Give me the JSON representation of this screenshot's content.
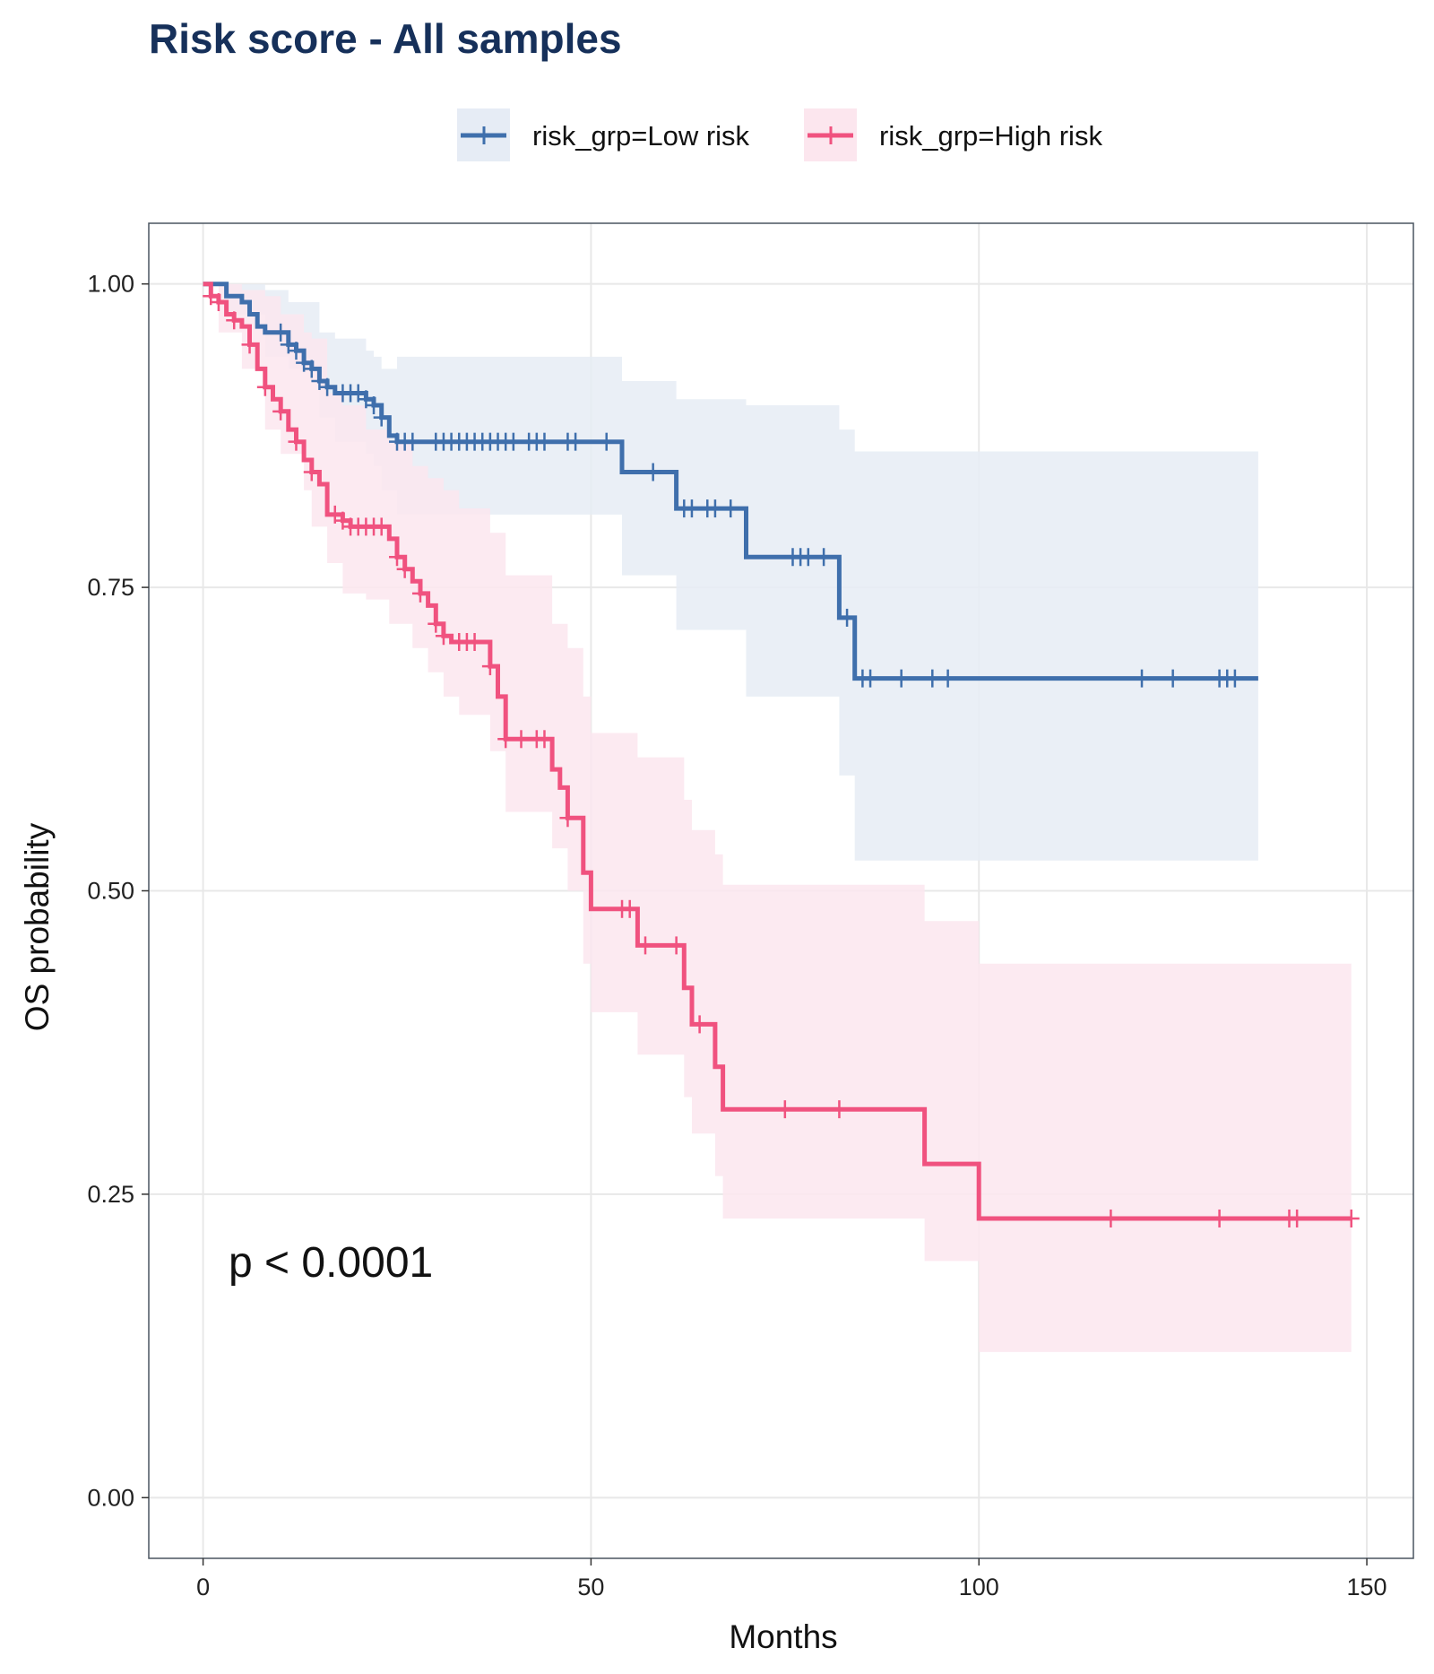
{
  "chart_data": {
    "type": "line",
    "subtype": "kaplan-meier survival curve with 95% confidence bands and censor marks",
    "title": "Risk score - All samples",
    "xlabel": "Months",
    "ylabel": "OS probability",
    "xlim": [
      -7,
      156
    ],
    "ylim": [
      -0.05,
      1.05
    ],
    "xticks": [
      0,
      50,
      100,
      150
    ],
    "xtick_labels": [
      "0",
      "50",
      "100",
      "150"
    ],
    "yticks": [
      0,
      0.25,
      0.5,
      0.75,
      1.0
    ],
    "ytick_labels": [
      "0.00",
      "0.25",
      "0.50",
      "0.75",
      "1.00"
    ],
    "grid": true,
    "legend_position": "top",
    "annotation": "p < 0.0001",
    "colors": {
      "title": "#16305a",
      "frame": "#4a5560",
      "grid": "#e8e8e8"
    },
    "series": [
      {
        "name": "risk_grp=Low risk",
        "color": "#3f6fac",
        "band_color": "#e6ecf5",
        "steps": [
          [
            0,
            1.0
          ],
          [
            3,
            0.99
          ],
          [
            5,
            0.985
          ],
          [
            6,
            0.975
          ],
          [
            7,
            0.965
          ],
          [
            8,
            0.96
          ],
          [
            11,
            0.95
          ],
          [
            12,
            0.945
          ],
          [
            13,
            0.935
          ],
          [
            14,
            0.93
          ],
          [
            15,
            0.92
          ],
          [
            16,
            0.915
          ],
          [
            17,
            0.91
          ],
          [
            21,
            0.905
          ],
          [
            22,
            0.9
          ],
          [
            23,
            0.89
          ],
          [
            24,
            0.875
          ],
          [
            25,
            0.87
          ],
          [
            54,
            0.845
          ],
          [
            61,
            0.815
          ],
          [
            70,
            0.775
          ],
          [
            82,
            0.725
          ],
          [
            84,
            0.675
          ],
          [
            136,
            0.675
          ]
        ],
        "band": [
          [
            0,
            1.0,
            1.0
          ],
          [
            3,
            1.0,
            0.975
          ],
          [
            8,
            0.995,
            0.94
          ],
          [
            11,
            0.985,
            0.93
          ],
          [
            15,
            0.96,
            0.89
          ],
          [
            17,
            0.955,
            0.87
          ],
          [
            21,
            0.945,
            0.86
          ],
          [
            22,
            0.94,
            0.85
          ],
          [
            23,
            0.93,
            0.83
          ],
          [
            25,
            0.94,
            0.81
          ],
          [
            54,
            0.92,
            0.76
          ],
          [
            61,
            0.905,
            0.715
          ],
          [
            70,
            0.9,
            0.66
          ],
          [
            82,
            0.88,
            0.595
          ],
          [
            84,
            0.862,
            0.525
          ],
          [
            136,
            0.862,
            0.525
          ]
        ],
        "censor_times": [
          10,
          11,
          12,
          13,
          14,
          15,
          16,
          18,
          19,
          20,
          21,
          22,
          23,
          25,
          26,
          27,
          30,
          31,
          32,
          33,
          34,
          35,
          36,
          37,
          38,
          39,
          40,
          42,
          43,
          44,
          47,
          48,
          52,
          58,
          62,
          63,
          65,
          66,
          68,
          76,
          77,
          78,
          80,
          83,
          85,
          86,
          90,
          94,
          96,
          121,
          125,
          131,
          132,
          133
        ]
      },
      {
        "name": "risk_grp=High risk",
        "color": "#f0527f",
        "band_color": "#fce6ee",
        "steps": [
          [
            0,
            1.0
          ],
          [
            1,
            0.99
          ],
          [
            2,
            0.985
          ],
          [
            3,
            0.975
          ],
          [
            4,
            0.97
          ],
          [
            5,
            0.965
          ],
          [
            6,
            0.95
          ],
          [
            7,
            0.93
          ],
          [
            8,
            0.915
          ],
          [
            9,
            0.905
          ],
          [
            10,
            0.895
          ],
          [
            11,
            0.88
          ],
          [
            12,
            0.87
          ],
          [
            13,
            0.855
          ],
          [
            14,
            0.845
          ],
          [
            15,
            0.835
          ],
          [
            16,
            0.81
          ],
          [
            18,
            0.805
          ],
          [
            19,
            0.8
          ],
          [
            24,
            0.79
          ],
          [
            25,
            0.775
          ],
          [
            26,
            0.765
          ],
          [
            27,
            0.755
          ],
          [
            28,
            0.745
          ],
          [
            29,
            0.735
          ],
          [
            30,
            0.72
          ],
          [
            31,
            0.71
          ],
          [
            32,
            0.705
          ],
          [
            37,
            0.685
          ],
          [
            38,
            0.66
          ],
          [
            39,
            0.625
          ],
          [
            45,
            0.6
          ],
          [
            46,
            0.585
          ],
          [
            47,
            0.56
          ],
          [
            49,
            0.515
          ],
          [
            50,
            0.485
          ],
          [
            56,
            0.455
          ],
          [
            62,
            0.42
          ],
          [
            63,
            0.39
          ],
          [
            66,
            0.355
          ],
          [
            67,
            0.32
          ],
          [
            93,
            0.275
          ],
          [
            100,
            0.23
          ],
          [
            148,
            0.23
          ]
        ],
        "band": [
          [
            0,
            1.0,
            1.0
          ],
          [
            2,
            1.0,
            0.96
          ],
          [
            5,
            0.995,
            0.93
          ],
          [
            8,
            0.99,
            0.88
          ],
          [
            10,
            0.975,
            0.86
          ],
          [
            13,
            0.96,
            0.83
          ],
          [
            14,
            0.955,
            0.8
          ],
          [
            16,
            0.91,
            0.77
          ],
          [
            18,
            0.9,
            0.745
          ],
          [
            21,
            0.88,
            0.74
          ],
          [
            24,
            0.87,
            0.72
          ],
          [
            27,
            0.85,
            0.7
          ],
          [
            29,
            0.84,
            0.68
          ],
          [
            31,
            0.83,
            0.66
          ],
          [
            33,
            0.815,
            0.645
          ],
          [
            37,
            0.795,
            0.615
          ],
          [
            39,
            0.76,
            0.565
          ],
          [
            45,
            0.72,
            0.535
          ],
          [
            47,
            0.7,
            0.5
          ],
          [
            49,
            0.66,
            0.44
          ],
          [
            50,
            0.63,
            0.4
          ],
          [
            56,
            0.61,
            0.365
          ],
          [
            62,
            0.575,
            0.33
          ],
          [
            63,
            0.55,
            0.3
          ],
          [
            66,
            0.53,
            0.265
          ],
          [
            67,
            0.505,
            0.23
          ],
          [
            93,
            0.475,
            0.195
          ],
          [
            100,
            0.44,
            0.12
          ],
          [
            148,
            0.44,
            0.12
          ]
        ],
        "censor_times": [
          1,
          2,
          4,
          6,
          8,
          10,
          12,
          14,
          17,
          18,
          19,
          20,
          21,
          22,
          23,
          25,
          26,
          28,
          30,
          31,
          33,
          34,
          35,
          37,
          39,
          41,
          43,
          44,
          47,
          54,
          55,
          57,
          61,
          64,
          75,
          82,
          117,
          131,
          140,
          141,
          148
        ]
      }
    ]
  }
}
